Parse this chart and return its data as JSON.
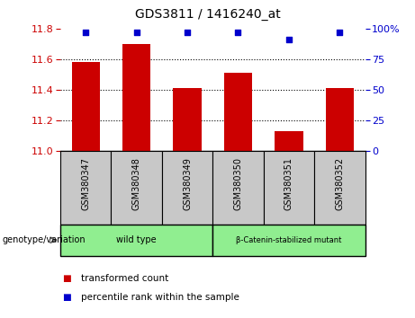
{
  "title": "GDS3811 / 1416240_at",
  "samples": [
    "GSM380347",
    "GSM380348",
    "GSM380349",
    "GSM380350",
    "GSM380351",
    "GSM380352"
  ],
  "bar_values": [
    11.58,
    11.7,
    11.41,
    11.51,
    11.13,
    11.41
  ],
  "percentile_values": [
    97,
    97,
    97,
    97,
    91,
    97
  ],
  "bar_color": "#cc0000",
  "percentile_color": "#0000cc",
  "ylim_left": [
    11.0,
    11.8
  ],
  "ylim_right": [
    0,
    100
  ],
  "yticks_left": [
    11.0,
    11.2,
    11.4,
    11.6,
    11.8
  ],
  "yticks_right": [
    0,
    25,
    50,
    75,
    100
  ],
  "yticklabels_right": [
    "0",
    "25",
    "50",
    "75",
    "100%"
  ],
  "grid_yvals": [
    11.2,
    11.4,
    11.6
  ],
  "groups": [
    {
      "label": "wild type",
      "indices": [
        0,
        1,
        2
      ],
      "color": "#90ee90"
    },
    {
      "label": "β-Catenin-stabilized mutant",
      "indices": [
        3,
        4,
        5
      ],
      "color": "#90ee90"
    }
  ],
  "group_label_prefix": "genotype/variation",
  "legend_items": [
    {
      "label": "transformed count",
      "color": "#cc0000"
    },
    {
      "label": "percentile rank within the sample",
      "color": "#0000cc"
    }
  ],
  "bar_width": 0.55,
  "background_color": "#ffffff",
  "tick_color_left": "#cc0000",
  "tick_color_right": "#0000cc",
  "label_area_color": "#c8c8c8"
}
